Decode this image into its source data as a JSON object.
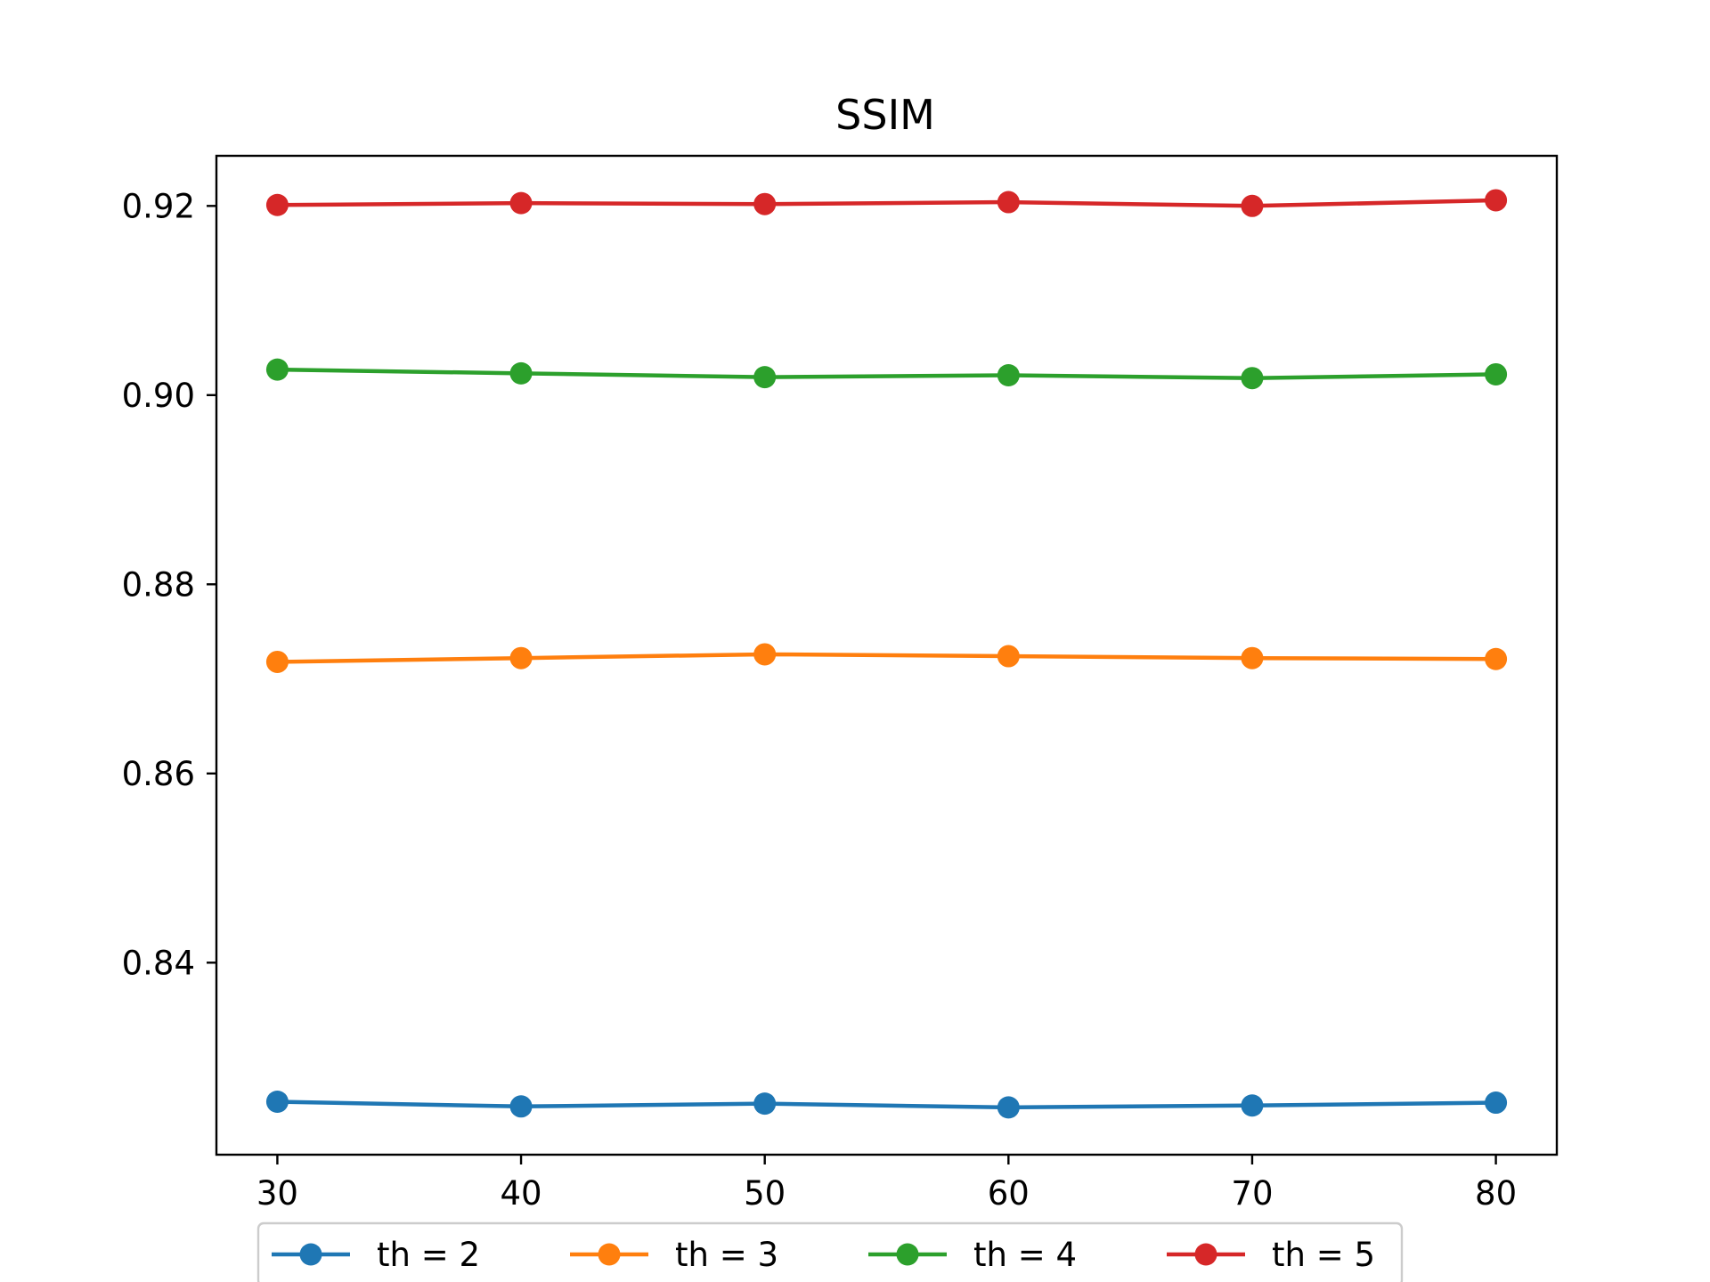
{
  "chart_data": {
    "type": "line",
    "title": "SSIM",
    "xlabel": "",
    "ylabel": "",
    "x": [
      30,
      40,
      50,
      60,
      70,
      80
    ],
    "xlim": [
      27.5,
      82.5
    ],
    "ylim": [
      0.8197,
      0.9253
    ],
    "xticks": [
      30,
      40,
      50,
      60,
      70,
      80
    ],
    "xtick_labels": [
      "30",
      "40",
      "50",
      "60",
      "70",
      "80"
    ],
    "yticks": [
      0.84,
      0.86,
      0.88,
      0.9,
      0.92
    ],
    "ytick_labels": [
      "0.84",
      "0.86",
      "0.88",
      "0.90",
      "0.92"
    ],
    "grid": false,
    "legend_position": "bottom-center-outside",
    "series": [
      {
        "name": "th = 2",
        "color": "#1f77b4",
        "values": [
          0.8253,
          0.8248,
          0.8251,
          0.8247,
          0.8249,
          0.8252
        ]
      },
      {
        "name": "th = 3",
        "color": "#ff7f0e",
        "values": [
          0.8718,
          0.8722,
          0.8726,
          0.8724,
          0.8722,
          0.8721
        ]
      },
      {
        "name": "th = 4",
        "color": "#2ca02c",
        "values": [
          0.9027,
          0.9023,
          0.9019,
          0.9021,
          0.9018,
          0.9022
        ]
      },
      {
        "name": "th = 5",
        "color": "#d62728",
        "values": [
          0.9201,
          0.9203,
          0.9202,
          0.9204,
          0.92,
          0.9206
        ]
      }
    ]
  }
}
